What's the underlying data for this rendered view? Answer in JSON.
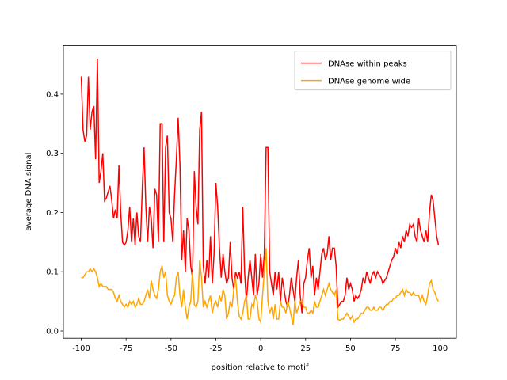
{
  "chart_data": {
    "type": "line",
    "xlabel": "position relative to motif",
    "ylabel": "average DNA signal",
    "legend": "upper right",
    "grid": false,
    "xlim": [
      -109.95,
      108.95
    ],
    "ylim": [
      -0.0123,
      0.482
    ],
    "xticks": [
      -100,
      -75,
      -50,
      -25,
      0,
      25,
      50,
      75,
      100
    ],
    "yticks": [
      {
        "value": 0,
        "label": "0.0"
      },
      0.1,
      0.2,
      0.3,
      0.4
    ],
    "x": [
      -100,
      -99,
      -98,
      -97,
      -96,
      -95,
      -94,
      -93,
      -92,
      -91,
      -90,
      -89,
      -88,
      -87,
      -86,
      -85,
      -84,
      -83,
      -82,
      -81,
      -80,
      -79,
      -78,
      -77,
      -76,
      -75,
      -74,
      -73,
      -72,
      -71,
      -70,
      -69,
      -68,
      -67,
      -66,
      -65,
      -64,
      -63,
      -62,
      -61,
      -60,
      -59,
      -58,
      -57,
      -56,
      -55,
      -54,
      -53,
      -52,
      -51,
      -50,
      -49,
      -48,
      -47,
      -46,
      -45,
      -44,
      -43,
      -42,
      -41,
      -40,
      -39,
      -38,
      -37,
      -36,
      -35,
      -34,
      -33,
      -32,
      -31,
      -30,
      -29,
      -28,
      -27,
      -26,
      -25,
      -24,
      -23,
      -22,
      -21,
      -20,
      -19,
      -18,
      -17,
      -16,
      -15,
      -14,
      -13,
      -12,
      -11,
      -10,
      -9,
      -8,
      -7,
      -6,
      -5,
      -4,
      -3,
      -2,
      -1,
      0,
      1,
      2,
      3,
      4,
      5,
      6,
      7,
      8,
      9,
      10,
      11,
      12,
      13,
      14,
      15,
      16,
      17,
      18,
      19,
      20,
      21,
      22,
      23,
      24,
      25,
      26,
      27,
      28,
      29,
      30,
      31,
      32,
      33,
      34,
      35,
      36,
      37,
      38,
      39,
      40,
      41,
      42,
      43,
      44,
      45,
      46,
      47,
      48,
      49,
      50,
      51,
      52,
      53,
      54,
      55,
      56,
      57,
      58,
      59,
      60,
      61,
      62,
      63,
      64,
      65,
      66,
      67,
      68,
      69,
      70,
      71,
      72,
      73,
      74,
      75,
      76,
      77,
      78,
      79,
      80,
      81,
      82,
      83,
      84,
      85,
      86,
      87,
      88,
      89,
      90,
      91,
      92,
      93,
      94,
      95,
      96,
      97,
      98,
      99
    ],
    "series": [
      {
        "name": "DNAse within peaks",
        "color": "#ff0000",
        "values": [
          0.43,
          0.34,
          0.32,
          0.33,
          0.43,
          0.34,
          0.37,
          0.38,
          0.29,
          0.46,
          0.25,
          0.27,
          0.3,
          0.22,
          0.225,
          0.235,
          0.245,
          0.22,
          0.19,
          0.205,
          0.19,
          0.28,
          0.2,
          0.15,
          0.145,
          0.15,
          0.17,
          0.21,
          0.15,
          0.19,
          0.145,
          0.2,
          0.16,
          0.15,
          0.24,
          0.31,
          0.21,
          0.15,
          0.21,
          0.19,
          0.14,
          0.24,
          0.23,
          0.15,
          0.35,
          0.35,
          0.15,
          0.31,
          0.33,
          0.2,
          0.19,
          0.15,
          0.23,
          0.29,
          0.36,
          0.28,
          0.12,
          0.17,
          0.1,
          0.19,
          0.17,
          0.11,
          0.09,
          0.27,
          0.21,
          0.18,
          0.34,
          0.37,
          0.11,
          0.08,
          0.12,
          0.09,
          0.16,
          0.08,
          0.13,
          0.25,
          0.21,
          0.14,
          0.09,
          0.13,
          0.1,
          0.08,
          0.09,
          0.15,
          0.09,
          0.07,
          0.1,
          0.09,
          0.1,
          0.08,
          0.21,
          0.1,
          0.05,
          0.09,
          0.12,
          0.09,
          0.06,
          0.13,
          0.06,
          0.08,
          0.13,
          0.09,
          0.13,
          0.31,
          0.31,
          0.1,
          0.08,
          0.06,
          0.1,
          0.07,
          0.1,
          0.05,
          0.09,
          0.07,
          0.05,
          0.04,
          0.06,
          0.09,
          0.07,
          0.05,
          0.09,
          0.12,
          0.06,
          0.03,
          0.08,
          0.09,
          0.12,
          0.14,
          0.09,
          0.11,
          0.06,
          0.09,
          0.07,
          0.1,
          0.13,
          0.14,
          0.12,
          0.13,
          0.16,
          0.12,
          0.14,
          0.14,
          0.11,
          0.04,
          0.045,
          0.05,
          0.05,
          0.06,
          0.09,
          0.07,
          0.08,
          0.07,
          0.05,
          0.06,
          0.055,
          0.06,
          0.07,
          0.09,
          0.08,
          0.1,
          0.09,
          0.08,
          0.095,
          0.1,
          0.09,
          0.1,
          0.095,
          0.09,
          0.08,
          0.085,
          0.09,
          0.1,
          0.11,
          0.12,
          0.125,
          0.14,
          0.13,
          0.15,
          0.14,
          0.16,
          0.15,
          0.17,
          0.16,
          0.18,
          0.175,
          0.18,
          0.16,
          0.15,
          0.19,
          0.17,
          0.16,
          0.15,
          0.17,
          0.15,
          0.2,
          0.23,
          0.22,
          0.19,
          0.16,
          0.145
        ]
      },
      {
        "name": "DNAse genome wide",
        "color": "#ffa500",
        "values": [
          0.09,
          0.09,
          0.095,
          0.1,
          0.1,
          0.105,
          0.1,
          0.105,
          0.1,
          0.09,
          0.075,
          0.08,
          0.075,
          0.075,
          0.075,
          0.07,
          0.07,
          0.07,
          0.065,
          0.055,
          0.05,
          0.06,
          0.05,
          0.045,
          0.04,
          0.045,
          0.04,
          0.05,
          0.045,
          0.05,
          0.04,
          0.045,
          0.055,
          0.045,
          0.045,
          0.05,
          0.06,
          0.07,
          0.055,
          0.085,
          0.07,
          0.06,
          0.055,
          0.07,
          0.1,
          0.11,
          0.09,
          0.1,
          0.06,
          0.05,
          0.045,
          0.055,
          0.06,
          0.09,
          0.1,
          0.06,
          0.04,
          0.07,
          0.04,
          0.02,
          0.04,
          0.05,
          0.1,
          0.045,
          0.04,
          0.05,
          0.12,
          0.09,
          0.04,
          0.05,
          0.04,
          0.05,
          0.06,
          0.03,
          0.045,
          0.05,
          0.04,
          0.06,
          0.05,
          0.07,
          0.06,
          0.02,
          0.03,
          0.05,
          0.04,
          0.07,
          0.09,
          0.05,
          0.025,
          0.02,
          0.03,
          0.05,
          0.06,
          0.02,
          0.02,
          0.045,
          0.04,
          0.06,
          0.05,
          0.02,
          0.015,
          0.06,
          0.1,
          0.14,
          0.05,
          0.03,
          0.04,
          0.02,
          0.045,
          0.02,
          0.02,
          0.05,
          0.04,
          0.04,
          0.03,
          0.05,
          0.04,
          0.025,
          0.01,
          0.05,
          0.03,
          0.04,
          0.05,
          0.05,
          0.04,
          0.04,
          0.03,
          0.03,
          0.035,
          0.03,
          0.05,
          0.04,
          0.04,
          0.05,
          0.06,
          0.07,
          0.06,
          0.07,
          0.08,
          0.07,
          0.065,
          0.06,
          0.07,
          0.02,
          0.018,
          0.02,
          0.02,
          0.025,
          0.03,
          0.025,
          0.02,
          0.025,
          0.015,
          0.02,
          0.02,
          0.025,
          0.03,
          0.03,
          0.035,
          0.04,
          0.04,
          0.035,
          0.035,
          0.04,
          0.035,
          0.035,
          0.04,
          0.04,
          0.035,
          0.04,
          0.045,
          0.045,
          0.05,
          0.05,
          0.055,
          0.055,
          0.06,
          0.06,
          0.065,
          0.07,
          0.06,
          0.07,
          0.065,
          0.065,
          0.06,
          0.065,
          0.06,
          0.06,
          0.06,
          0.05,
          0.06,
          0.05,
          0.045,
          0.06,
          0.08,
          0.085,
          0.07,
          0.065,
          0.055,
          0.05
        ]
      }
    ]
  }
}
